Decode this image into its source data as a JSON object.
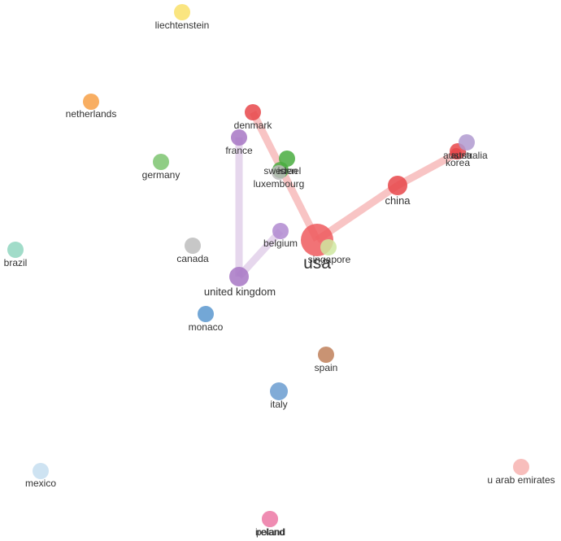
{
  "chart_data": {
    "type": "network",
    "nodes": [
      {
        "id": "liechtenstein",
        "label": "liechtenstein",
        "color": "#f9e06a"
      },
      {
        "id": "netherlands",
        "label": "netherlands",
        "color": "#f7a046"
      },
      {
        "id": "denmark",
        "label": "denmark",
        "color": "#e8464a"
      },
      {
        "id": "france",
        "label": "france",
        "color": "#a777c4"
      },
      {
        "id": "germany",
        "label": "germany",
        "color": "#7cc470"
      },
      {
        "id": "sweden",
        "label": "sweden",
        "color": "#49ad3f"
      },
      {
        "id": "israel",
        "label": "israel",
        "color": "#49ad3f"
      },
      {
        "id": "luxembourg",
        "label": "luxembourg",
        "color": "#bbbbbb"
      },
      {
        "id": "austria",
        "label": "austria",
        "color": "#e8464a"
      },
      {
        "id": "australia",
        "label": "australia",
        "color": "#b09ad0"
      },
      {
        "id": "korea",
        "label": "korea",
        "color": "#e8464a"
      },
      {
        "id": "china",
        "label": "china",
        "color": "#e8464a"
      },
      {
        "id": "brazil",
        "label": "brazil",
        "color": "#90d6c0"
      },
      {
        "id": "canada",
        "label": "canada",
        "color": "#bdbdbd"
      },
      {
        "id": "belgium",
        "label": "belgium",
        "color": "#b08ad0"
      },
      {
        "id": "usa",
        "label": "usa",
        "color": "#ee5a5e"
      },
      {
        "id": "singapore",
        "label": "singapore",
        "color": "#cfe8a0"
      },
      {
        "id": "united_kingdom",
        "label": "united kingdom",
        "color": "#a777c4"
      },
      {
        "id": "monaco",
        "label": "monaco",
        "color": "#5b98cf"
      },
      {
        "id": "spain",
        "label": "spain",
        "color": "#c0805a"
      },
      {
        "id": "italy",
        "label": "italy",
        "color": "#6a9cd0"
      },
      {
        "id": "mexico",
        "label": "mexico",
        "color": "#c6def0"
      },
      {
        "id": "u_arab_emirates",
        "label": "u arab emirates",
        "color": "#f7b3b0"
      },
      {
        "id": "ireland",
        "label": "ireland",
        "color": "#ee8ab0"
      },
      {
        "id": "poland",
        "label": "poland",
        "color": "#ee8ab0"
      }
    ],
    "edges": [
      {
        "source": "usa",
        "target": "denmark",
        "color": "#f4a4a4"
      },
      {
        "source": "usa",
        "target": "china",
        "color": "#f4a4a4"
      },
      {
        "source": "china",
        "target": "korea",
        "color": "#f4a4a4"
      },
      {
        "source": "france",
        "target": "united_kingdom",
        "color": "#d8c2e4"
      },
      {
        "source": "united_kingdom",
        "target": "belgium",
        "color": "#d8c2e4"
      }
    ]
  }
}
